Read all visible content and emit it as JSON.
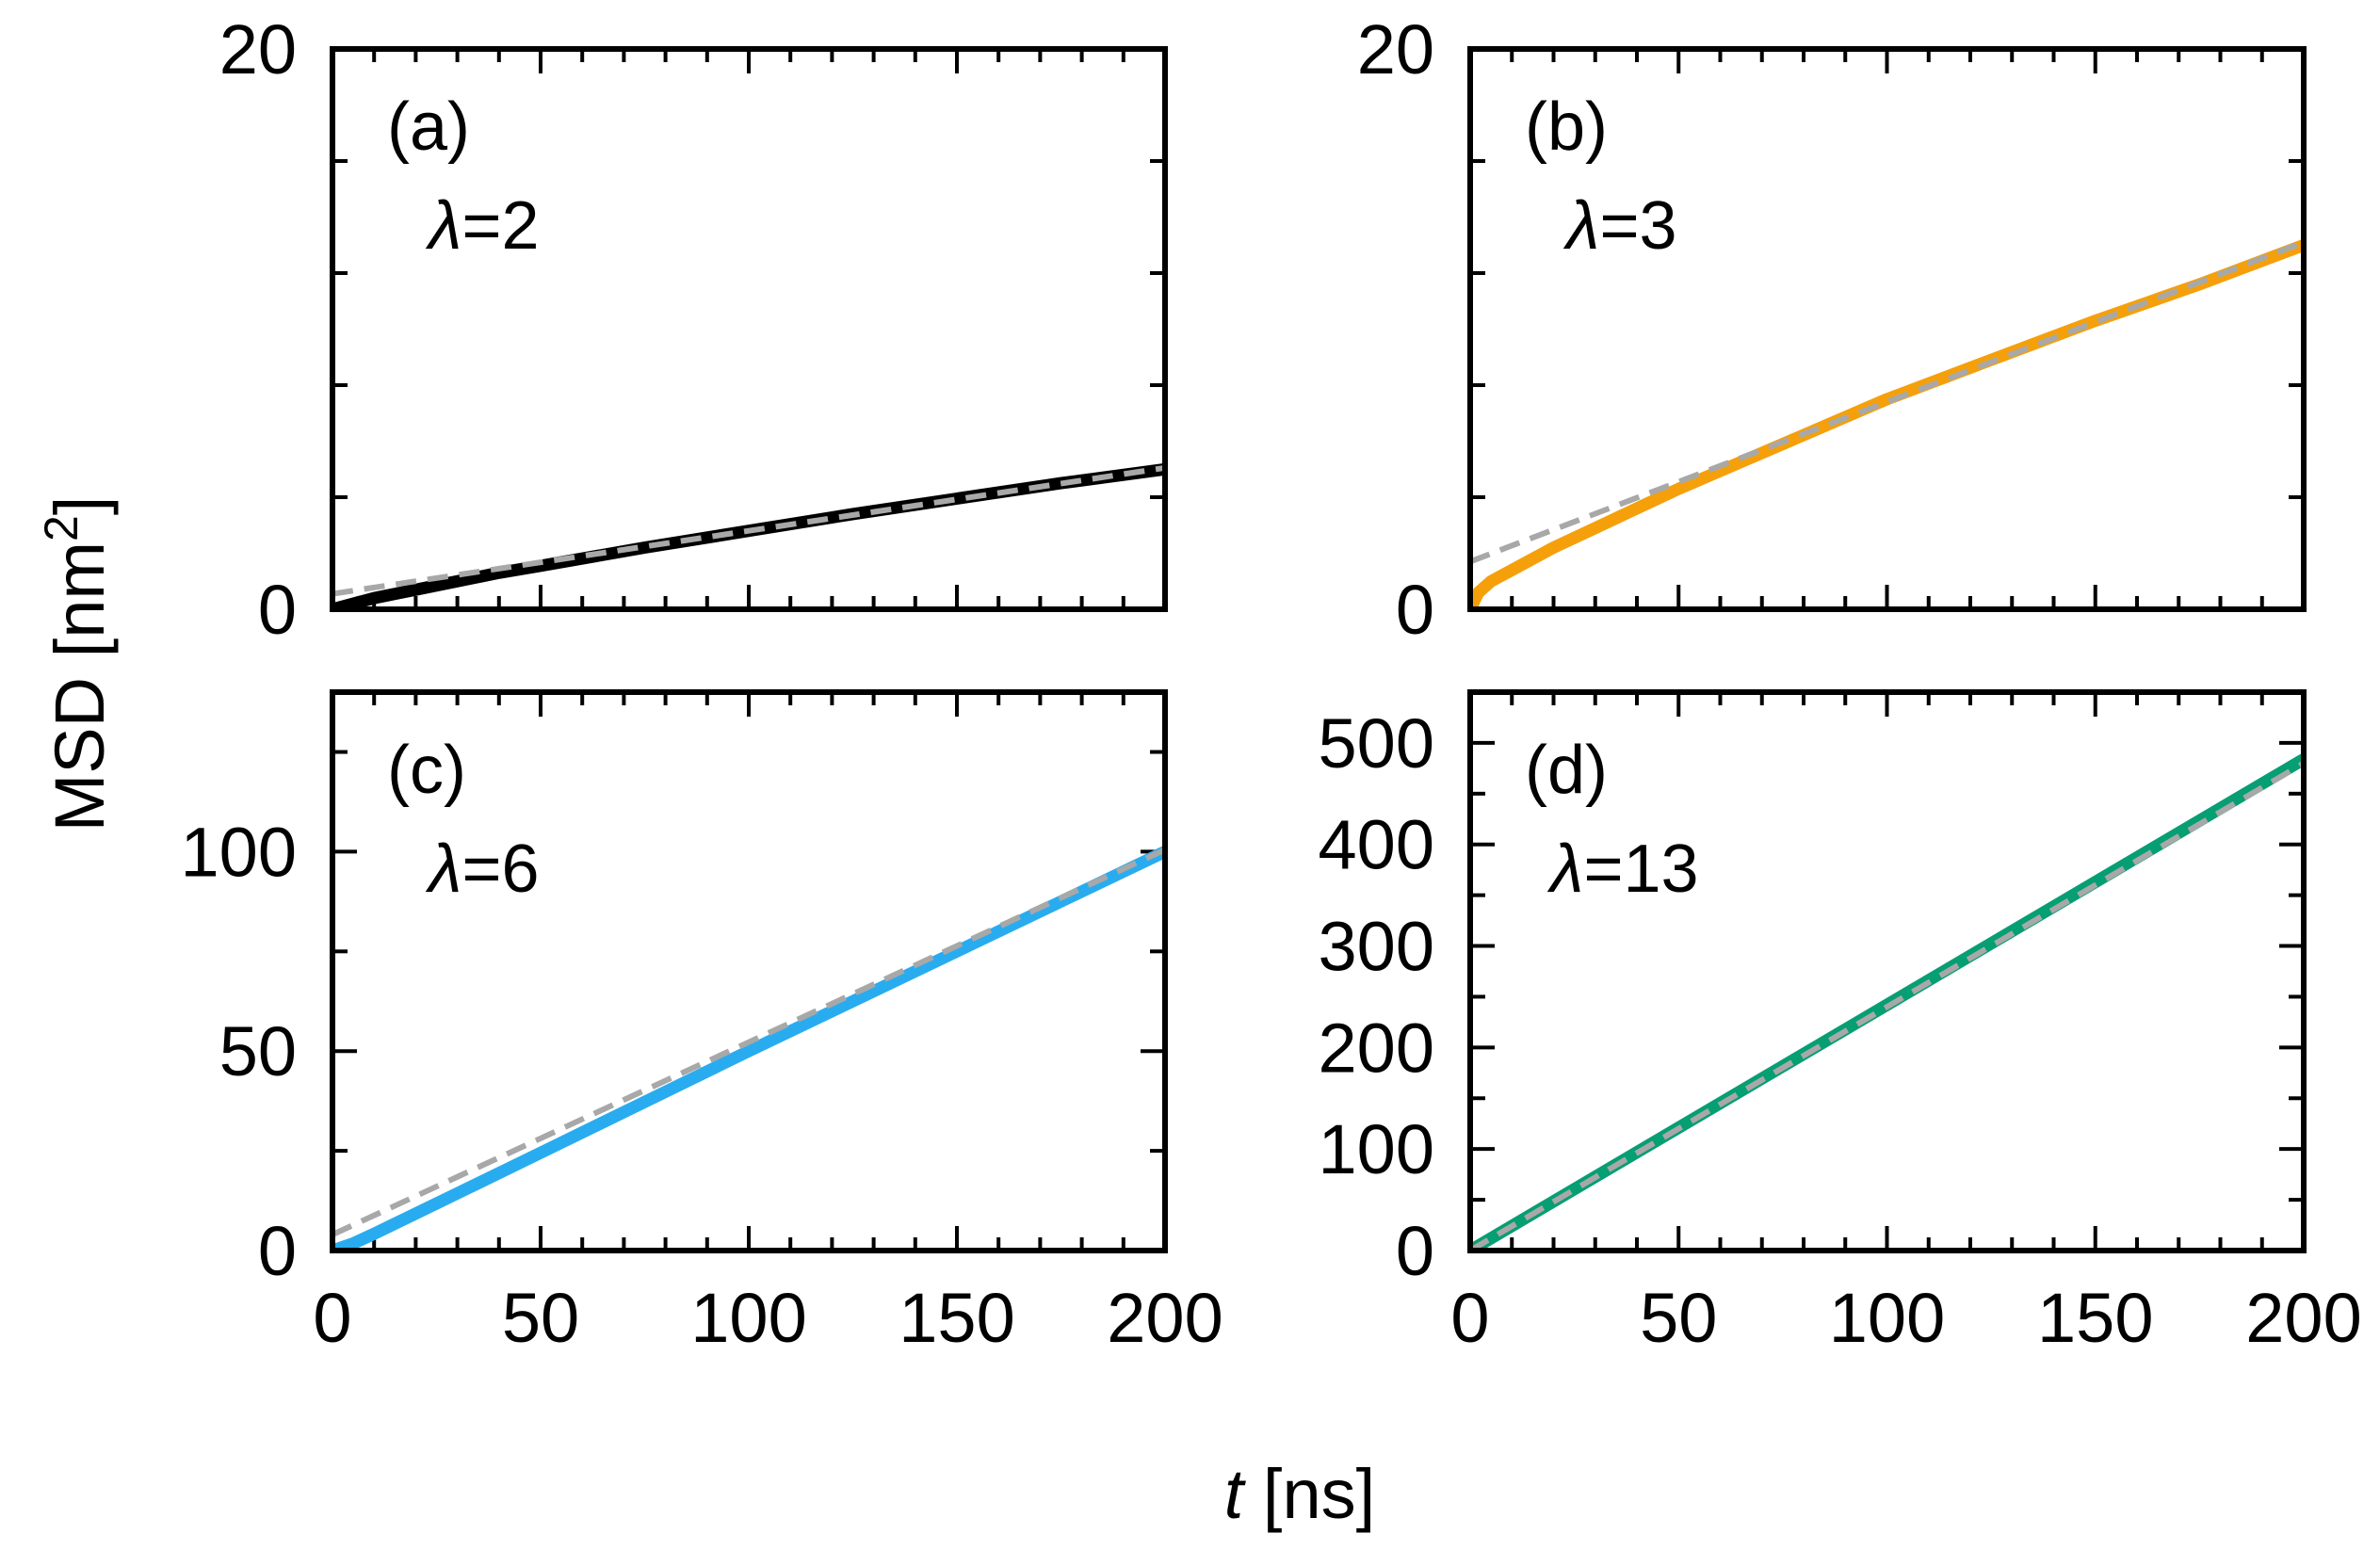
{
  "chart_data": [
    {
      "type": "line",
      "panel_label": "(a)",
      "annotation": {
        "symbol": "λ",
        "text": "=2"
      },
      "xlim": [
        0,
        200
      ],
      "ylim": [
        0,
        20
      ],
      "x_ticks": [
        "0",
        "50",
        "100",
        "150",
        "200"
      ],
      "y_ticks": [
        {
          "value": 0,
          "label": "0"
        },
        {
          "value": 20,
          "label": "20"
        }
      ],
      "y_minor_step": 4,
      "x_minor_step": 10,
      "series": [
        {
          "name": "MSD",
          "color": "#000000",
          "style": "solid",
          "x": [
            0,
            5,
            10,
            20,
            30,
            40,
            50,
            75,
            100,
            125,
            150,
            175,
            200
          ],
          "y": [
            0,
            0.2,
            0.4,
            0.7,
            1.0,
            1.3,
            1.55,
            2.2,
            2.8,
            3.4,
            3.95,
            4.5,
            5.0
          ]
        },
        {
          "name": "fit",
          "color": "#a8a8a8",
          "style": "dashed",
          "x": [
            0,
            200
          ],
          "y": [
            0.55,
            5.05
          ]
        }
      ]
    },
    {
      "type": "line",
      "panel_label": "(b)",
      "annotation": {
        "symbol": "λ",
        "text": "=3"
      },
      "xlim": [
        0,
        200
      ],
      "ylim": [
        0,
        20
      ],
      "x_ticks": [
        "0",
        "50",
        "100",
        "150",
        "200"
      ],
      "y_ticks": [
        {
          "value": 0,
          "label": "0"
        },
        {
          "value": 20,
          "label": "20"
        }
      ],
      "y_minor_step": 4,
      "x_minor_step": 10,
      "series": [
        {
          "name": "MSD",
          "color": "#f5a00b",
          "style": "solid",
          "x": [
            0,
            2,
            5,
            10,
            20,
            30,
            40,
            50,
            75,
            100,
            125,
            150,
            175,
            200
          ],
          "y": [
            0,
            0.6,
            1.0,
            1.4,
            2.2,
            2.9,
            3.6,
            4.3,
            5.9,
            7.5,
            8.9,
            10.3,
            11.6,
            13.0
          ]
        },
        {
          "name": "fit",
          "color": "#a8a8a8",
          "style": "dashed",
          "x": [
            0,
            200
          ],
          "y": [
            1.7,
            13.1
          ]
        }
      ]
    },
    {
      "type": "line",
      "panel_label": "(c)",
      "annotation": {
        "symbol": "λ",
        "text": "=6"
      },
      "xlim": [
        0,
        200
      ],
      "ylim": [
        0,
        140
      ],
      "x_ticks": [
        "0",
        "50",
        "100",
        "150",
        "200"
      ],
      "y_ticks": [
        {
          "value": 0,
          "label": "0"
        },
        {
          "value": 50,
          "label": "50"
        },
        {
          "value": 100,
          "label": "100"
        }
      ],
      "y_minor_step": 25,
      "x_minor_step": 10,
      "series": [
        {
          "name": "MSD",
          "color": "#29acef",
          "style": "solid",
          "x": [
            0,
            5,
            10,
            25,
            50,
            100,
            150,
            200
          ],
          "y": [
            0,
            1.8,
            4.2,
            11.8,
            24.5,
            50,
            75,
            100
          ]
        },
        {
          "name": "fit",
          "color": "#a8a8a8",
          "style": "dashed",
          "x": [
            0,
            200
          ],
          "y": [
            4.0,
            100.5
          ]
        }
      ]
    },
    {
      "type": "line",
      "panel_label": "(d)",
      "annotation": {
        "symbol": "λ",
        "text": "=13"
      },
      "xlim": [
        0,
        200
      ],
      "ylim": [
        0,
        550
      ],
      "x_ticks": [
        "0",
        "50",
        "100",
        "150",
        "200"
      ],
      "y_ticks": [
        {
          "value": 0,
          "label": "0"
        },
        {
          "value": 100,
          "label": "100"
        },
        {
          "value": 200,
          "label": "200"
        },
        {
          "value": 300,
          "label": "300"
        },
        {
          "value": 400,
          "label": "400"
        },
        {
          "value": 500,
          "label": "500"
        }
      ],
      "y_minor_step": 50,
      "x_minor_step": 10,
      "series": [
        {
          "name": "MSD",
          "color": "#069e73",
          "style": "solid",
          "x": [
            0,
            50,
            100,
            150,
            200
          ],
          "y": [
            0,
            121,
            242,
            363,
            484
          ]
        },
        {
          "name": "fit",
          "color": "#a8a8a8",
          "style": "dashed",
          "x": [
            0,
            200
          ],
          "y": [
            0,
            480
          ]
        }
      ]
    }
  ],
  "shared_axes": {
    "ylabel_main": "MSD [nm",
    "ylabel_superscript": "2",
    "ylabel_tail": "]",
    "xlabel_var": "t",
    "xlabel_unit": " [ns]"
  }
}
